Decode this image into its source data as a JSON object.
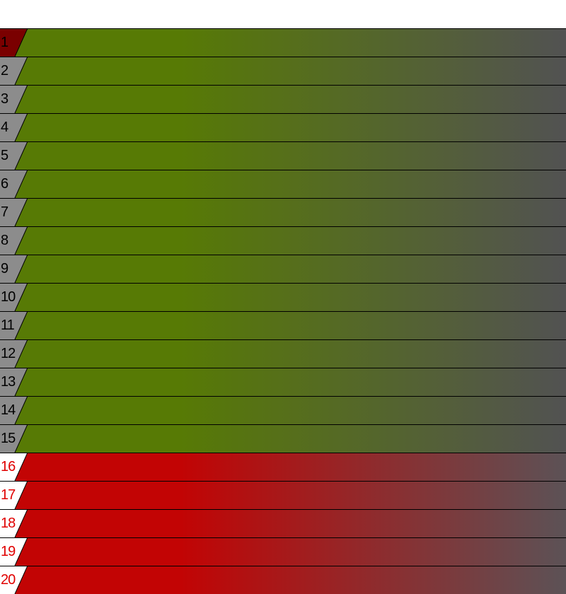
{
  "colors": {
    "leader_pos_bg": "#7a0000",
    "normal_pos_bg": "#8c8c8c",
    "danger_pos_bg": "#ffffff",
    "green_start": "#577a05",
    "green_end": "#525252",
    "red_start": "#c20404",
    "red_end": "#5c5256",
    "normal_text": "#000000",
    "danger_text": "#e00000",
    "line": "#000000"
  },
  "rows": [
    {
      "pos": "1",
      "zone": "leader"
    },
    {
      "pos": "2",
      "zone": "normal"
    },
    {
      "pos": "3",
      "zone": "normal"
    },
    {
      "pos": "4",
      "zone": "normal"
    },
    {
      "pos": "5",
      "zone": "normal"
    },
    {
      "pos": "6",
      "zone": "normal"
    },
    {
      "pos": "7",
      "zone": "normal"
    },
    {
      "pos": "8",
      "zone": "normal"
    },
    {
      "pos": "9",
      "zone": "normal"
    },
    {
      "pos": "10",
      "zone": "normal"
    },
    {
      "pos": "11",
      "zone": "normal"
    },
    {
      "pos": "12",
      "zone": "normal"
    },
    {
      "pos": "13",
      "zone": "normal"
    },
    {
      "pos": "14",
      "zone": "normal"
    },
    {
      "pos": "15",
      "zone": "normal"
    },
    {
      "pos": "16",
      "zone": "danger"
    },
    {
      "pos": "17",
      "zone": "danger"
    },
    {
      "pos": "18",
      "zone": "danger"
    },
    {
      "pos": "19",
      "zone": "danger"
    },
    {
      "pos": "20",
      "zone": "danger"
    }
  ]
}
